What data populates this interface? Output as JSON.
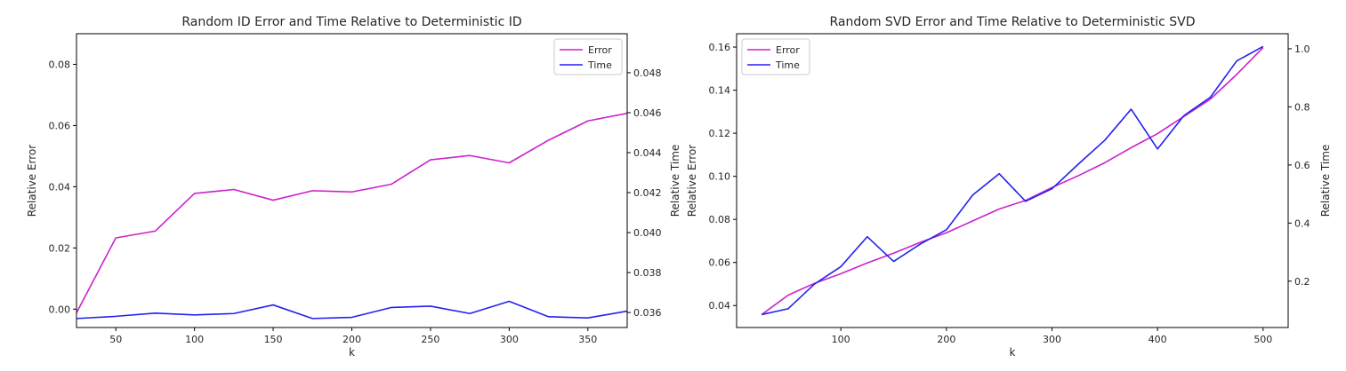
{
  "chart_data": [
    {
      "type": "line",
      "title": "Random ID Error and Time Relative to Deterministic ID",
      "xlabel": "k",
      "ylabel": "Relative Error",
      "y2label": "Relative Time",
      "xlim": [
        25,
        375
      ],
      "ylim": [
        -0.006,
        0.09
      ],
      "y2lim": [
        0.03525,
        0.04995
      ],
      "xticks": [
        50,
        100,
        150,
        200,
        250,
        300,
        350
      ],
      "xtick_labels": [
        "50",
        "100",
        "150",
        "200",
        "250",
        "300",
        "350"
      ],
      "yticks": [
        0.0,
        0.02,
        0.04,
        0.06,
        0.08
      ],
      "ytick_labels": [
        "0.00",
        "0.02",
        "0.04",
        "0.06",
        "0.08"
      ],
      "y2ticks": [
        0.036,
        0.038,
        0.04,
        0.042,
        0.044,
        0.046,
        0.048
      ],
      "y2tick_labels": [
        "0.036",
        "0.038",
        "0.040",
        "0.042",
        "0.044",
        "0.046",
        "0.048"
      ],
      "legend_position": "top-right",
      "grid": false,
      "x": [
        25,
        50,
        75,
        100,
        125,
        150,
        175,
        200,
        225,
        250,
        275,
        300,
        325,
        350,
        375
      ],
      "series": [
        {
          "name": "Error",
          "axis": "left",
          "color": "#cc22cc",
          "values": [
            -0.0012,
            0.0233,
            0.0255,
            0.0378,
            0.0391,
            0.0356,
            0.0387,
            0.0383,
            0.0408,
            0.0488,
            0.0502,
            0.0478,
            0.0552,
            0.0615,
            0.064
          ]
        },
        {
          "name": "Time",
          "axis": "right",
          "color": "#2222ee",
          "values": [
            0.0357,
            0.03581,
            0.03597,
            0.03588,
            0.03595,
            0.03638,
            0.0357,
            0.03576,
            0.03625,
            0.03632,
            0.03595,
            0.03656,
            0.03579,
            0.03573,
            0.03607
          ]
        }
      ]
    },
    {
      "type": "line",
      "title": "Random SVD Error and Time Relative to Deterministic SVD",
      "xlabel": "k",
      "ylabel": "Relative Error",
      "y2label": "Relative Time",
      "xlim": [
        1.25,
        523.75
      ],
      "ylim": [
        0.0298,
        0.1662
      ],
      "y2lim": [
        0.0405,
        1.0518
      ],
      "xticks": [
        100,
        200,
        300,
        400,
        500
      ],
      "xtick_labels": [
        "100",
        "200",
        "300",
        "400",
        "500"
      ],
      "yticks": [
        0.04,
        0.06,
        0.08,
        0.1,
        0.12,
        0.14,
        0.16
      ],
      "ytick_labels": [
        "0.04",
        "0.06",
        "0.08",
        "0.10",
        "0.12",
        "0.14",
        "0.16"
      ],
      "y2ticks": [
        0.2,
        0.4,
        0.6,
        0.8,
        1.0
      ],
      "y2tick_labels": [
        "0.2",
        "0.4",
        "0.6",
        "0.8",
        "1.0"
      ],
      "legend_position": "top-left",
      "grid": false,
      "x": [
        25,
        50,
        75,
        100,
        125,
        150,
        175,
        200,
        225,
        250,
        275,
        300,
        325,
        350,
        375,
        400,
        425,
        450,
        475,
        500
      ],
      "series": [
        {
          "name": "Error",
          "axis": "left",
          "color": "#cc22cc",
          "values": [
            0.0358,
            0.0448,
            0.0503,
            0.0548,
            0.0598,
            0.0643,
            0.0693,
            0.0738,
            0.0793,
            0.0848,
            0.0888,
            0.0948,
            0.1003,
            0.1063,
            0.1133,
            0.1198,
            0.1278,
            0.1358,
            0.1473,
            0.1598
          ]
        },
        {
          "name": "Time",
          "axis": "right",
          "color": "#2222ee",
          "values": [
            0.085,
            0.105,
            0.19,
            0.25,
            0.353,
            0.268,
            0.327,
            0.377,
            0.497,
            0.57,
            0.475,
            0.518,
            0.603,
            0.685,
            0.792,
            0.655,
            0.77,
            0.833,
            0.958,
            1.008
          ]
        }
      ]
    }
  ]
}
